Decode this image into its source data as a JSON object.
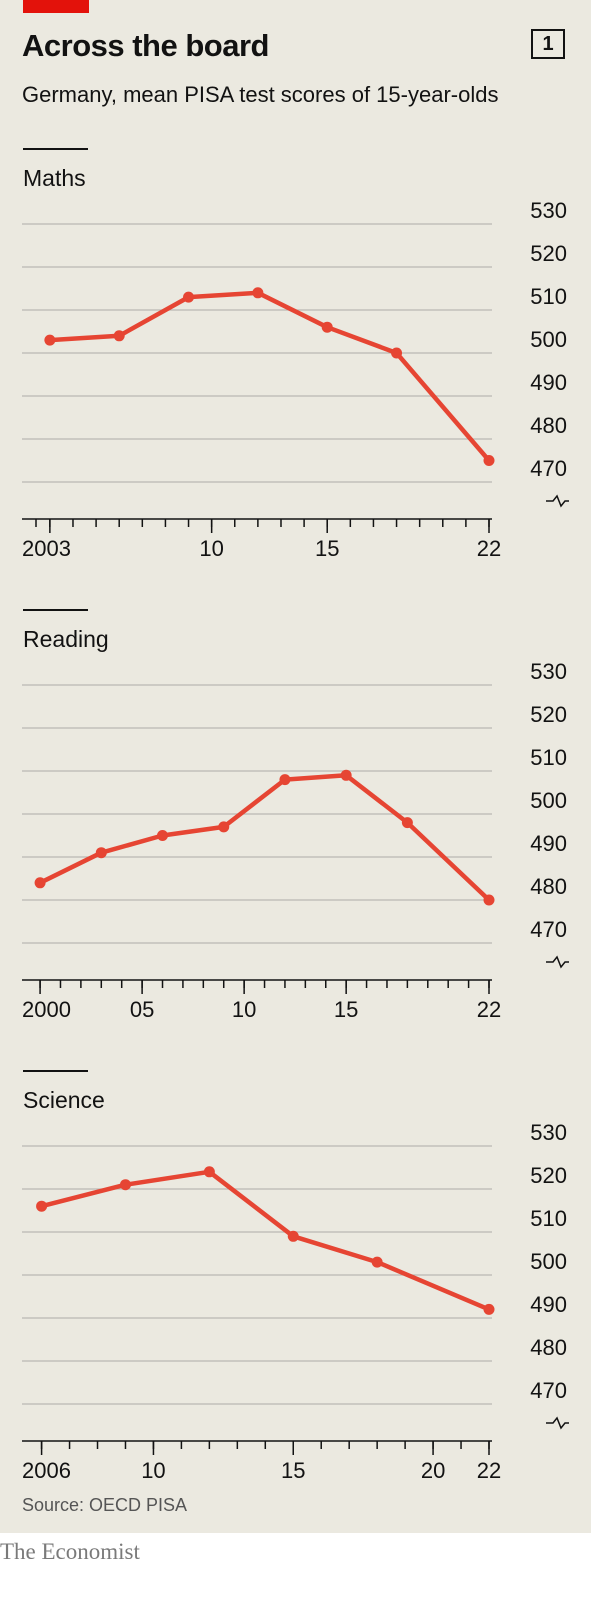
{
  "header": {
    "title": "Across the board",
    "chart_number": "1",
    "subtitle": "Germany, mean PISA test scores of 15-year-olds",
    "accent_color": "#e3120b"
  },
  "footer": {
    "source": "Source: OECD PISA",
    "brand": "The Economist"
  },
  "colors": {
    "line": "#e64533",
    "grid": "#b9b8b2",
    "text": "#121212"
  },
  "chart_data": [
    {
      "type": "line",
      "title": "Maths",
      "x": [
        2003,
        2006,
        2009,
        2012,
        2015,
        2018,
        2022
      ],
      "values": [
        503,
        504,
        513,
        514,
        506,
        500,
        475
      ],
      "xlim": [
        2002.4,
        2022
      ],
      "ylim": [
        470,
        530
      ],
      "y_ticks": [
        "530",
        "520",
        "510",
        "500",
        "490",
        "480",
        "470"
      ],
      "x_tick_labels": [
        {
          "x": 2003,
          "label": "2003"
        },
        {
          "x": 2010,
          "label": "10"
        },
        {
          "x": 2015,
          "label": "15"
        },
        {
          "x": 2022,
          "label": "22"
        }
      ],
      "x_minor_ticks": [
        2002.4,
        2003,
        2004,
        2005,
        2006,
        2007,
        2008,
        2009,
        2010,
        2011,
        2012,
        2013,
        2014,
        2015,
        2016,
        2017,
        2018,
        2019,
        2020,
        2021,
        2022
      ],
      "grid": true,
      "axis_break": true,
      "legend": "none"
    },
    {
      "type": "line",
      "title": "Reading",
      "x": [
        2000,
        2003,
        2006,
        2009,
        2012,
        2015,
        2018,
        2022
      ],
      "values": [
        484,
        491,
        495,
        497,
        508,
        509,
        498,
        480
      ],
      "xlim": [
        1999.8,
        2022
      ],
      "ylim": [
        470,
        530
      ],
      "y_ticks": [
        "530",
        "520",
        "510",
        "500",
        "490",
        "480",
        "470"
      ],
      "x_tick_labels": [
        {
          "x": 2000,
          "label": "2000"
        },
        {
          "x": 2005,
          "label": "05"
        },
        {
          "x": 2010,
          "label": "10"
        },
        {
          "x": 2015,
          "label": "15"
        },
        {
          "x": 2022,
          "label": "22"
        }
      ],
      "x_minor_ticks": [
        2000,
        2001,
        2002,
        2003,
        2004,
        2005,
        2006,
        2007,
        2008,
        2009,
        2010,
        2011,
        2012,
        2013,
        2014,
        2015,
        2016,
        2017,
        2018,
        2019,
        2020,
        2021,
        2022
      ],
      "grid": true,
      "axis_break": true,
      "legend": "none"
    },
    {
      "type": "line",
      "title": "Science",
      "x": [
        2006,
        2009,
        2012,
        2015,
        2018,
        2022
      ],
      "values": [
        516,
        521,
        524,
        509,
        503,
        492
      ],
      "xlim": [
        2005.8,
        2022
      ],
      "ylim": [
        470,
        530
      ],
      "y_ticks": [
        "530",
        "520",
        "510",
        "500",
        "490",
        "480",
        "470"
      ],
      "x_tick_labels": [
        {
          "x": 2006,
          "label": "2006"
        },
        {
          "x": 2010,
          "label": "10"
        },
        {
          "x": 2015,
          "label": "15"
        },
        {
          "x": 2020,
          "label": "20"
        },
        {
          "x": 2022,
          "label": "22"
        }
      ],
      "x_minor_ticks": [
        2006,
        2007,
        2008,
        2009,
        2010,
        2011,
        2012,
        2013,
        2014,
        2015,
        2016,
        2017,
        2018,
        2019,
        2020,
        2021,
        2022
      ],
      "grid": true,
      "axis_break": true,
      "legend": "none"
    }
  ]
}
